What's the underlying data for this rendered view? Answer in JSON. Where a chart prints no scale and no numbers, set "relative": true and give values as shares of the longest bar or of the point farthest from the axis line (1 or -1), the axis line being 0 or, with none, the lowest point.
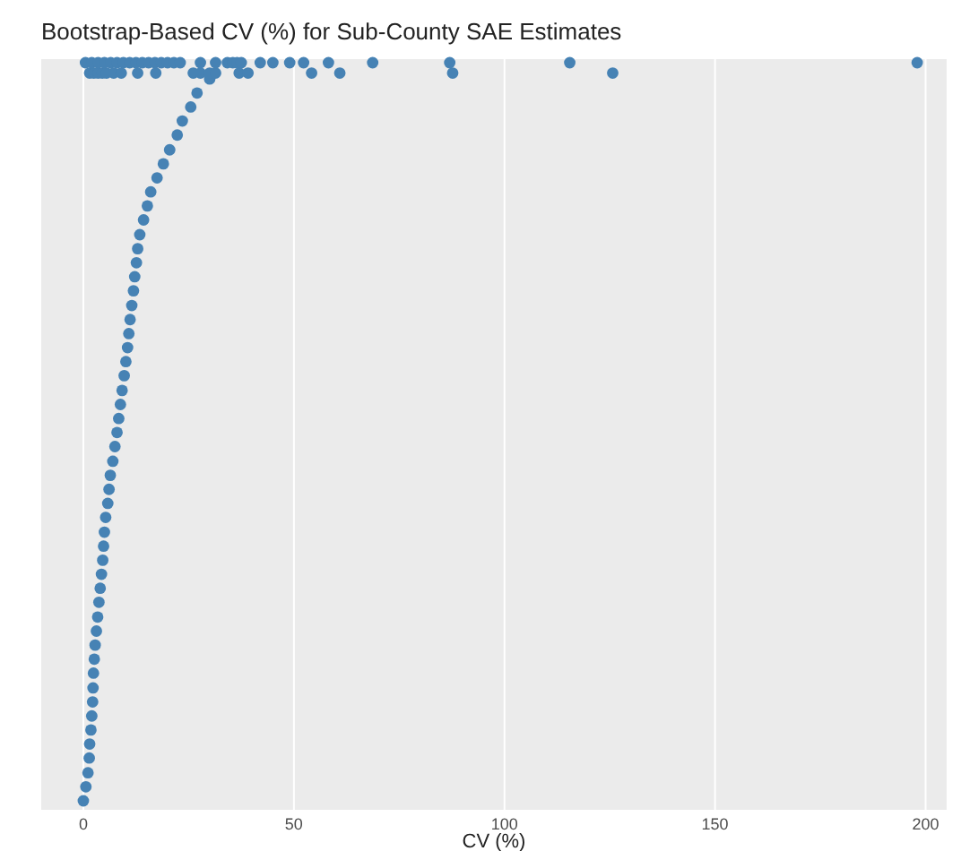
{
  "chart_data": {
    "type": "scatter",
    "title": "Bootstrap-Based CV (%) for Sub-County SAE Estimates",
    "xlabel": "CV (%)",
    "relative": true,
    "tick_labels": "x",
    "grid": "x",
    "marker": "circle",
    "xlim": [
      -10,
      205
    ],
    "xticks": [
      0,
      50,
      100,
      150,
      200
    ],
    "series": [
      {
        "color": "#4682b4",
        "x": [
          0,
          0.6,
          1.1,
          1.4,
          1.5,
          1.8,
          2,
          2.2,
          2.3,
          2.4,
          2.6,
          2.8,
          3.1,
          3.4,
          3.7,
          4,
          4.3,
          4.6,
          4.8,
          5,
          5.3,
          5.8,
          6.1,
          6.4,
          7,
          7.5,
          8,
          8.4,
          8.8,
          9.2,
          9.7,
          10.1,
          10.5,
          10.8,
          11.1,
          11.5,
          11.9,
          12.2,
          12.6,
          12.9,
          13.4,
          14.3,
          15.2,
          16,
          17.5,
          19,
          20.5,
          22.3,
          23.5,
          25.5,
          27,
          30,
          1.5,
          2.5,
          3.5,
          4.5,
          5.5,
          7.2,
          9,
          12.9,
          17.2,
          26.1,
          27.8,
          30,
          31.4,
          37,
          39.1,
          54.2,
          60.9,
          87.7,
          125.7,
          0.5,
          2,
          3.5,
          5,
          6.5,
          8,
          9.5,
          11,
          12.5,
          14,
          15.5,
          17,
          18.5,
          20,
          21.5,
          23,
          27.8,
          31.4,
          34.2,
          35.5,
          36.5,
          37.5,
          42,
          45,
          49,
          52.3,
          58.2,
          68.7,
          87,
          115.5,
          198
        ],
        "values": [
          0,
          0.019,
          0.038,
          0.058,
          0.077,
          0.096,
          0.115,
          0.134,
          0.153,
          0.173,
          0.192,
          0.211,
          0.23,
          0.249,
          0.269,
          0.288,
          0.307,
          0.326,
          0.345,
          0.364,
          0.384,
          0.403,
          0.422,
          0.441,
          0.46,
          0.48,
          0.499,
          0.518,
          0.537,
          0.556,
          0.576,
          0.595,
          0.614,
          0.633,
          0.652,
          0.671,
          0.691,
          0.71,
          0.729,
          0.748,
          0.767,
          0.787,
          0.806,
          0.825,
          0.844,
          0.863,
          0.882,
          0.902,
          0.921,
          0.94,
          0.959,
          0.978,
          0.986,
          0.986,
          0.986,
          0.986,
          0.986,
          0.986,
          0.986,
          0.986,
          0.986,
          0.986,
          0.986,
          0.986,
          0.986,
          0.986,
          0.986,
          0.986,
          0.986,
          0.986,
          0.986,
          1,
          1,
          1,
          1,
          1,
          1,
          1,
          1,
          1,
          1,
          1,
          1,
          1,
          1,
          1,
          1,
          1,
          1,
          1,
          1,
          1,
          1,
          1,
          1,
          1,
          1,
          1,
          1,
          1,
          1,
          1
        ]
      }
    ]
  }
}
